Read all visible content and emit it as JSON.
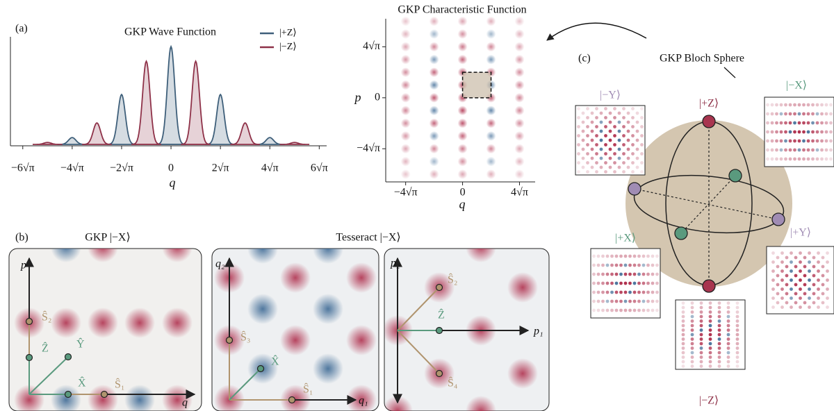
{
  "chart_data": [
    {
      "type": "area",
      "title": "GKP Wave Function",
      "x_label": "q",
      "xlim": [
        -6.5,
        6.3
      ],
      "ylim": [
        0,
        1.1
      ],
      "xticks": [
        {
          "value": -6,
          "label": "−6√π"
        },
        {
          "value": -4,
          "label": "−4√π"
        },
        {
          "value": -2,
          "label": "−2√π"
        },
        0,
        {
          "value": 2,
          "label": "2√π"
        },
        {
          "value": 4,
          "label": "4√π"
        },
        {
          "value": 6,
          "label": "6√π"
        }
      ],
      "legend": "upper right",
      "series": [
        {
          "name": "|+Z⟩",
          "color": "#3e5f7a",
          "x": [
            -4,
            -2,
            0,
            2,
            4
          ],
          "values": [
            0.07,
            0.51,
            1.0,
            0.51,
            0.07
          ]
        },
        {
          "name": "|−Z⟩",
          "color": "#8e3148",
          "x": [
            -5,
            -3,
            -1,
            1,
            3,
            5
          ],
          "values": [
            0.02,
            0.22,
            0.85,
            0.85,
            0.22,
            0.02
          ]
        }
      ]
    },
    {
      "type": "heatmap",
      "title": "GKP Characteristic Function",
      "x_label": "q",
      "y_label": "p",
      "xlim": [
        -5.4,
        5.1
      ],
      "ylim": [
        -6.6,
        6.2
      ],
      "xticks": [
        {
          "value": -4,
          "label": "−4√π"
        },
        0,
        {
          "value": 4,
          "label": "4√π"
        }
      ],
      "yticks": [
        {
          "value": -4,
          "label": "−4√π"
        },
        0,
        {
          "value": 4,
          "label": "4√π"
        }
      ]
    }
  ],
  "panel_labels": {
    "a": "(a)",
    "b": "(b)",
    "c": "(c)"
  },
  "bloch": {
    "title": "GKP Bloch Sphere",
    "plus_z": "|+Z⟩",
    "minus_z": "|−Z⟩",
    "plus_x": "|+X⟩",
    "minus_x": "|−X⟩",
    "plus_y": "|+Y⟩",
    "minus_y": "|−Y⟩"
  },
  "gkp_lattice": {
    "title": "GKP |−X⟩",
    "x_axis": "q",
    "y_axis": "p",
    "s2": "Ŝ₂",
    "z": "Ẑ",
    "y": "Ŷ",
    "x": "X̂",
    "s1": "Ŝ₁"
  },
  "tesseract": {
    "title": "Tesseract |−X⟩",
    "q_panel": {
      "x_axis": "q₁",
      "y_axis": "q₂",
      "s3": "Ŝ₃",
      "x": "X̂",
      "s1": "Ŝ₁"
    },
    "p_panel": {
      "x_axis": "p₁",
      "y_axis": "p₂",
      "s2": "Ŝ₂",
      "z": "Ẑ",
      "s4": "Ŝ₄"
    }
  }
}
